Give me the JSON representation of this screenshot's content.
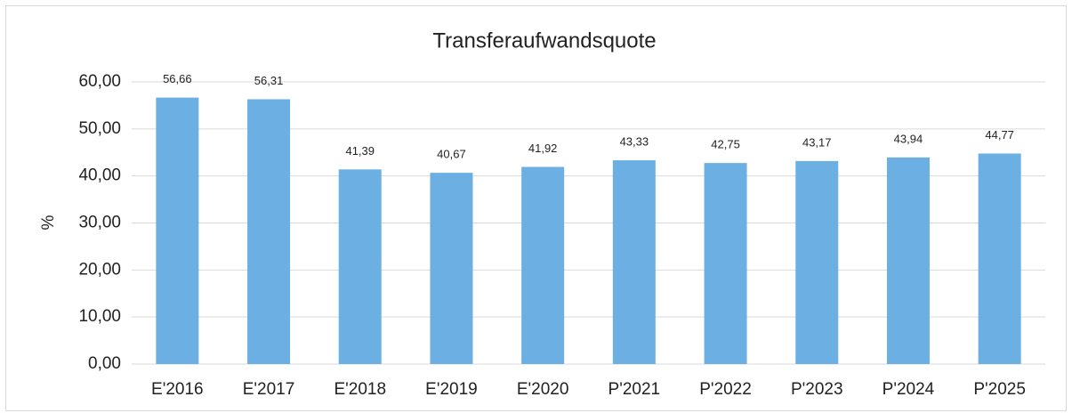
{
  "chart_data": {
    "type": "bar",
    "title": "Transferaufwandsquote",
    "y_label": "%",
    "categories": [
      "E'2016",
      "E'2017",
      "E'2018",
      "E'2019",
      "E'2020",
      "P'2021",
      "P'2022",
      "P'2023",
      "P'2024",
      "P'2025"
    ],
    "values": [
      56.66,
      56.31,
      41.39,
      40.67,
      41.92,
      43.33,
      42.75,
      43.17,
      43.94,
      44.77
    ],
    "value_labels": [
      "56,66",
      "56,31",
      "41,39",
      "40,67",
      "41,92",
      "43,33",
      "42,75",
      "43,17",
      "43,94",
      "44,77"
    ],
    "color": "#6cb0e3",
    "ylim": [
      0,
      60
    ],
    "yticks": [
      {
        "value": 0,
        "label": "0,00"
      },
      {
        "value": 10,
        "label": "10,00"
      },
      {
        "value": 20,
        "label": "20,00"
      },
      {
        "value": 30,
        "label": "30,00"
      },
      {
        "value": 40,
        "label": "40,00"
      },
      {
        "value": 50,
        "label": "50,00"
      },
      {
        "value": 60,
        "label": "60,00"
      }
    ],
    "grid": true
  }
}
